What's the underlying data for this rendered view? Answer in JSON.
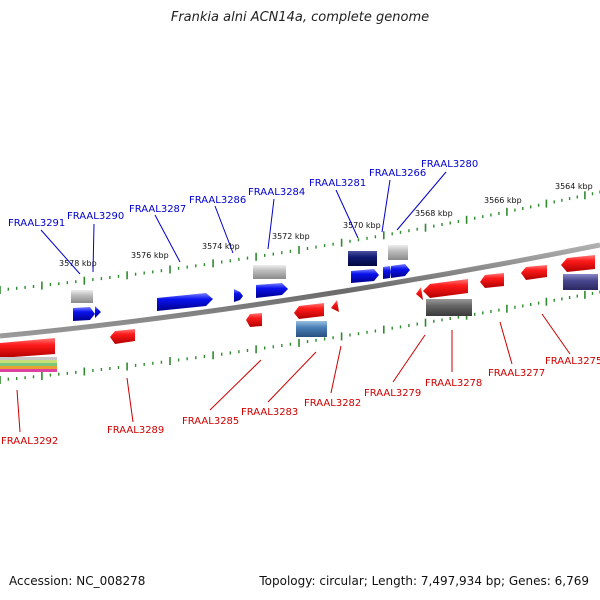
{
  "title": "Frankia alni ACN14a, complete genome",
  "accession_text": "Accession: NC_008278",
  "topology_text": "Topology: circular; Length: 7,497,934 bp; Genes: 6,769",
  "colors": {
    "backbone": "#7a7a7a",
    "tick": "#2e8b2e",
    "forward_label": "#0000cc",
    "reverse_label": "#cc0000",
    "forward_gene": "#0a12ee",
    "reverse_gene": "#ee1212"
  },
  "scale_labels": [
    "3578 kbp",
    "3576 kbp",
    "3574 kbp",
    "3572 kbp",
    "3570 kbp",
    "3568 kbp",
    "3566 kbp",
    "3564 kbp"
  ],
  "forward_genes": [
    "FRAAL3291",
    "FRAAL3290",
    "FRAAL3287",
    "FRAAL3286",
    "FRAAL3284",
    "FRAAL3281",
    "FRAAL3266",
    "FRAAL3280"
  ],
  "reverse_genes": [
    "FRAAL3292",
    "FRAAL3289",
    "FRAAL3285",
    "FRAAL3283",
    "FRAAL3282",
    "FRAAL3279",
    "FRAAL3278",
    "FRAAL3277",
    "FRAAL3275"
  ]
}
